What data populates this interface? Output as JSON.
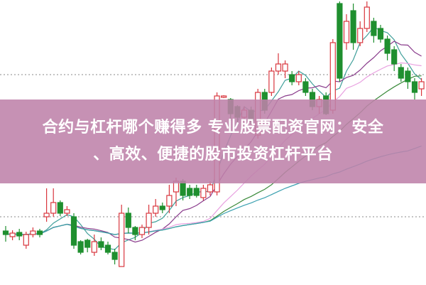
{
  "banner": {
    "line1": "合约与杠杆哪个赚得多 专业股票配资官网：安全",
    "line2": "、高效、便捷的股市投资杠杆平台"
  },
  "colors": {
    "up": "#d9363e",
    "down": "#1f8f2f",
    "banner": "#be82aa",
    "ma": [
      "#3f9f9a",
      "#8a3c8c",
      "#e8a0e0",
      "#3a8a3a",
      "#3aa0b0"
    ]
  },
  "chart_data": {
    "type": "candlestick",
    "note_fields": [
      "open",
      "close",
      "high",
      "low"
    ],
    "grid": "dotted horizontal",
    "moving_average_periods": [
      5,
      10,
      20,
      30,
      60
    ],
    "candles": [
      [
        75,
        70,
        82,
        60
      ],
      [
        67,
        72,
        76,
        62
      ],
      [
        73,
        68,
        78,
        62
      ],
      [
        55,
        70,
        74,
        50
      ],
      [
        70,
        75,
        80,
        66
      ],
      [
        75,
        70,
        78,
        66
      ],
      [
        95,
        100,
        135,
        88
      ],
      [
        100,
        115,
        135,
        95
      ],
      [
        115,
        100,
        118,
        96
      ],
      [
        100,
        105,
        110,
        96
      ],
      [
        95,
        55,
        100,
        50
      ],
      [
        60,
        45,
        62,
        42
      ],
      [
        62,
        52,
        64,
        45
      ],
      [
        45,
        60,
        70,
        40
      ],
      [
        60,
        52,
        66,
        48
      ],
      [
        55,
        45,
        60,
        42
      ],
      [
        45,
        35,
        50,
        28
      ],
      [
        25,
        100,
        112,
        25
      ],
      [
        100,
        80,
        108,
        72
      ],
      [
        80,
        70,
        82,
        62
      ],
      [
        70,
        80,
        84,
        65
      ],
      [
        80,
        100,
        112,
        70
      ],
      [
        100,
        110,
        120,
        95
      ],
      [
        110,
        105,
        115,
        100
      ],
      [
        110,
        125,
        140,
        100
      ],
      [
        130,
        145,
        150,
        110
      ],
      [
        145,
        125,
        148,
        118
      ],
      [
        135,
        125,
        140,
        120
      ],
      [
        135,
        125,
        140,
        122
      ],
      [
        122,
        135,
        140,
        118
      ],
      [
        130,
        140,
        145,
        125
      ],
      [
        130,
        265,
        270,
        125
      ],
      [
        263,
        265,
        266,
        262
      ],
      [
        260,
        240,
        262,
        230
      ],
      [
        250,
        235,
        252,
        225
      ],
      [
        235,
        245,
        250,
        230
      ],
      [
        245,
        230,
        250,
        225
      ],
      [
        210,
        270,
        275,
        205
      ],
      [
        270,
        245,
        275,
        240
      ],
      [
        270,
        300,
        305,
        265
      ],
      [
        300,
        310,
        325,
        295
      ],
      [
        300,
        310,
        315,
        290
      ],
      [
        295,
        285,
        300,
        280
      ],
      [
        285,
        295,
        300,
        280
      ],
      [
        285,
        270,
        290,
        265
      ],
      [
        270,
        250,
        275,
        245
      ],
      [
        250,
        260,
        265,
        240
      ],
      [
        265,
        240,
        270,
        238
      ],
      [
        245,
        340,
        345,
        240
      ],
      [
        395,
        290,
        398,
        285
      ],
      [
        340,
        370,
        380,
        330
      ],
      [
        385,
        340,
        395,
        330
      ],
      [
        340,
        360,
        370,
        335
      ],
      [
        360,
        390,
        398,
        355
      ],
      [
        370,
        350,
        375,
        340
      ],
      [
        360,
        345,
        365,
        340
      ],
      [
        345,
        325,
        350,
        315
      ],
      [
        330,
        310,
        335,
        300
      ],
      [
        305,
        290,
        310,
        285
      ],
      [
        300,
        285,
        305,
        275
      ],
      [
        285,
        270,
        290,
        260
      ],
      [
        275,
        285,
        290,
        265
      ]
    ]
  }
}
